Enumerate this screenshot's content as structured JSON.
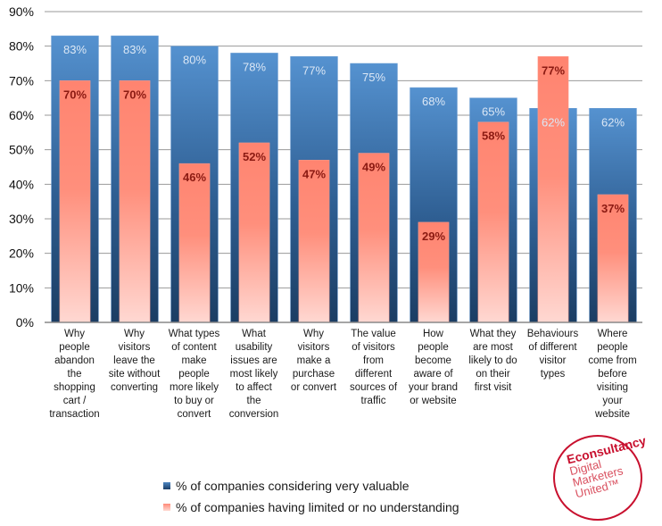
{
  "chart_data": {
    "type": "bar",
    "title": "",
    "xlabel": "",
    "ylabel": "",
    "ylim": [
      0,
      90
    ],
    "yticks": [
      "0%",
      "10%",
      "20%",
      "30%",
      "40%",
      "50%",
      "60%",
      "70%",
      "80%",
      "90%"
    ],
    "grid": true,
    "legend_position": "bottom",
    "categories": [
      "Why\npeople\nabandon\nthe\nshopping\ncart /\ntransaction",
      "Why\nvisitors\nleave the\nsite without\nconverting",
      "What types\nof content\nmake\npeople\nmore likely\nto buy or\nconvert",
      "What\nusability\nissues are\nmost likely\nto affect\nthe\nconversion",
      "Why\nvisitors\nmake a\npurchase\nor convert",
      "The value\nof visitors\nfrom\ndifferent\nsources of\ntraffic",
      "How\npeople\nbecome\naware of\nyour brand\nor website",
      "What they\nare most\nlikely to do\non their\nfirst visit",
      "Behaviours\nof different\nvisitor\ntypes",
      "Where\npeople\ncome from\nbefore\nvisiting\nyour\nwebsite"
    ],
    "series": [
      {
        "name": "% of companies considering very valuable",
        "color": "#3a6ea8",
        "values": [
          83,
          83,
          80,
          78,
          77,
          75,
          68,
          65,
          62,
          62
        ],
        "labels": [
          "83%",
          "83%",
          "80%",
          "78%",
          "77%",
          "75%",
          "68%",
          "65%",
          "62%",
          "62%"
        ]
      },
      {
        "name": "% of companies having limited or no understanding",
        "color": "#ff8a78",
        "values": [
          70,
          70,
          46,
          52,
          47,
          49,
          29,
          58,
          77,
          37
        ],
        "labels": [
          "70%",
          "70%",
          "46%",
          "52%",
          "47%",
          "49%",
          "29%",
          "58%",
          "77%",
          "37%"
        ]
      }
    ]
  },
  "logo": {
    "brand": "Econsultancy",
    "line1": "Digital",
    "line2": "Marketers",
    "line3": "United™"
  }
}
